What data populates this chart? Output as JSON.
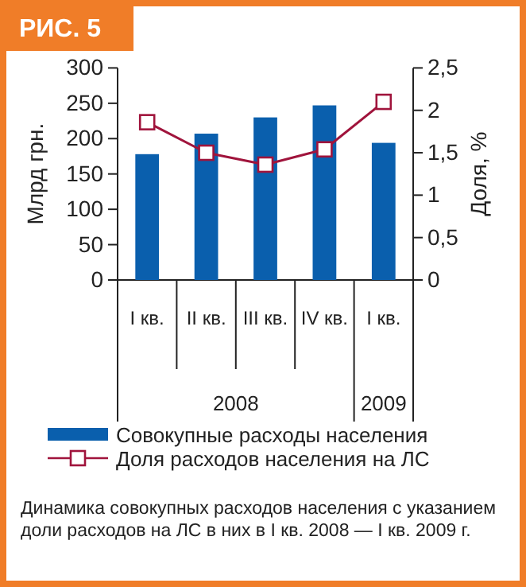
{
  "chart_data": {
    "type": "bar",
    "title": "РИС. 5",
    "categories": [
      "I кв.",
      "II кв.",
      "III кв.",
      "IV кв.",
      "I кв."
    ],
    "series": [
      {
        "name": "Совокупные расходы населения",
        "color": "#0a5fad",
        "values": [
          178,
          207,
          230,
          247,
          194
        ]
      },
      {
        "name": "Доля расходов населения на ЛС",
        "type": "line",
        "axis": "y2",
        "color": "#a0143c",
        "marker": "square",
        "values": [
          1.86,
          1.5,
          1.36,
          1.54,
          2.1
        ]
      }
    ],
    "ylabel": "Млрд грн.",
    "y2label": "Доля, %",
    "ylim": [
      0,
      300
    ],
    "yticks": [
      0,
      50,
      100,
      150,
      200,
      250,
      300
    ],
    "y2lim": [
      0,
      2.5
    ],
    "y2ticks": [
      0,
      {
        "value": 0.5,
        "label": "0,5"
      },
      1,
      {
        "value": 1.5,
        "label": "1,5"
      },
      2,
      {
        "value": 2.5,
        "label": "2,5"
      }
    ],
    "annotations": [
      "2008",
      "2009",
      "Динамика совокупных расходов населения с указанием доли расходов на ЛС в них в I кв. 2008 — I кв. 2009 г."
    ],
    "legend": "bottom",
    "grid": false
  }
}
